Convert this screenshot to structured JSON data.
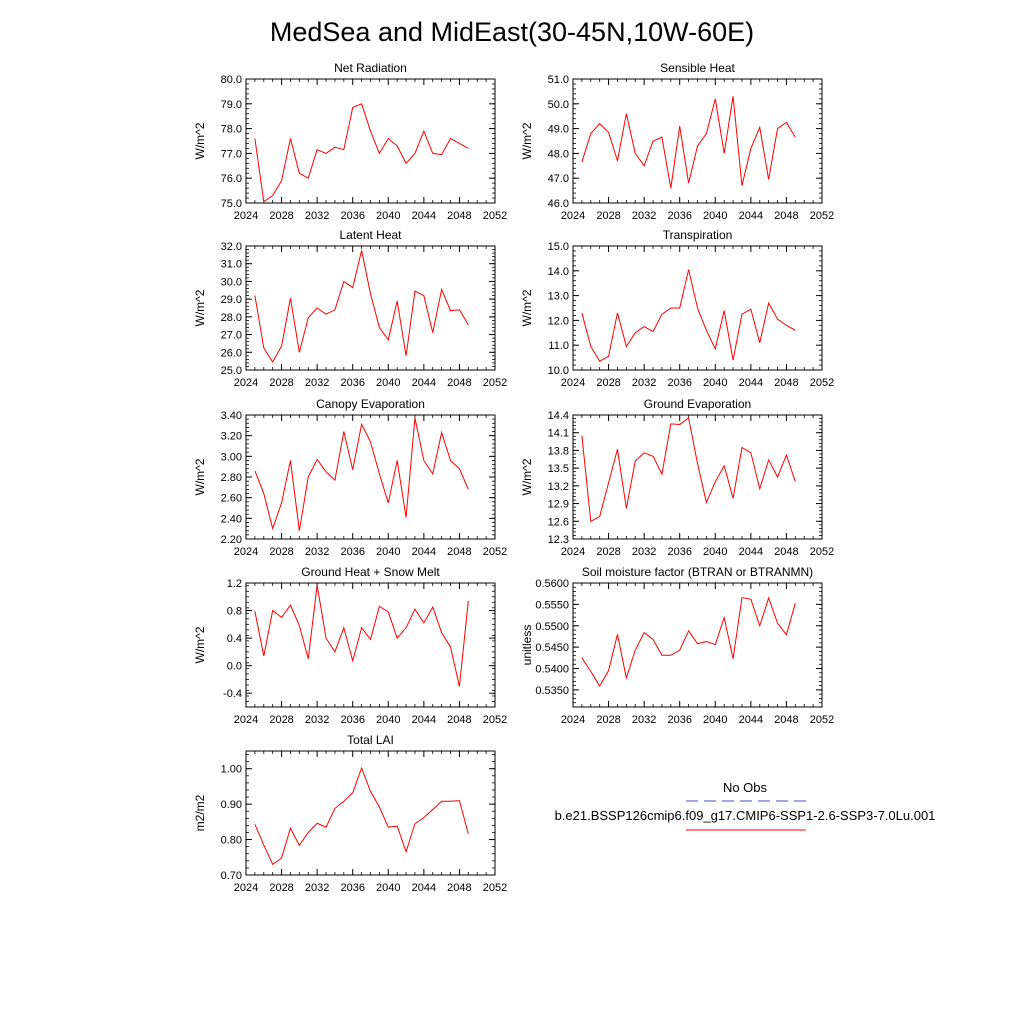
{
  "page_title": "MedSea and MidEast(30-45N,10W-60E)",
  "legend": {
    "obs_label": "No Obs",
    "run_label": "b.e21.BSSP126cmip6.f09_g17.CMIP6-SSP1-2.6-SSP3-7.0Lu.001",
    "obs_color": "#4b4bd0",
    "run_color": "#ff0000"
  },
  "chart_data": [
    {
      "type": "line",
      "title": "Net Radiation",
      "ylabel": "W/m^2",
      "xlim": [
        2024,
        2052
      ],
      "ylim": [
        75.0,
        80.0
      ],
      "xticks": [
        "2024",
        "2028",
        "2032",
        "2036",
        "2040",
        "2044",
        "2048",
        "2052"
      ],
      "yticks": [
        "75.0",
        "76.0",
        "77.0",
        "78.0",
        "79.0",
        "80.0"
      ],
      "x": [
        2025,
        2026,
        2027,
        2028,
        2029,
        2030,
        2031,
        2032,
        2033,
        2034,
        2035,
        2036,
        2037,
        2038,
        2039,
        2040,
        2041,
        2042,
        2043,
        2044,
        2045,
        2046,
        2047,
        2048,
        2049
      ],
      "series": [
        {
          "color": "#ff0000",
          "values": [
            77.6,
            75.05,
            75.3,
            75.9,
            77.6,
            76.2,
            76.0,
            77.15,
            77.0,
            77.25,
            77.15,
            78.85,
            79.0,
            77.9,
            77.0,
            77.6,
            77.3,
            76.6,
            77.0,
            77.9,
            77.0,
            76.95,
            77.6,
            77.4,
            77.2
          ]
        }
      ]
    },
    {
      "type": "line",
      "title": "Sensible Heat",
      "ylabel": "W/m^2",
      "xlim": [
        2024,
        2052
      ],
      "ylim": [
        46.0,
        51.0
      ],
      "xticks": [
        "2024",
        "2028",
        "2032",
        "2036",
        "2040",
        "2044",
        "2048",
        "2052"
      ],
      "yticks": [
        "46.0",
        "47.0",
        "48.0",
        "49.0",
        "50.0",
        "51.0"
      ],
      "x": [
        2025,
        2026,
        2027,
        2028,
        2029,
        2030,
        2031,
        2032,
        2033,
        2034,
        2035,
        2036,
        2037,
        2038,
        2039,
        2040,
        2041,
        2042,
        2043,
        2044,
        2045,
        2046,
        2047,
        2048,
        2049
      ],
      "series": [
        {
          "color": "#ff0000",
          "values": [
            47.65,
            48.8,
            49.2,
            48.85,
            47.7,
            49.6,
            48.0,
            47.5,
            48.5,
            48.65,
            46.6,
            49.1,
            46.8,
            48.3,
            48.8,
            50.2,
            48.0,
            50.3,
            46.7,
            48.2,
            49.05,
            46.95,
            49.0,
            49.25,
            48.65
          ]
        }
      ]
    },
    {
      "type": "line",
      "title": "Latent Heat",
      "ylabel": "W/m^2",
      "xlim": [
        2024,
        2052
      ],
      "ylim": [
        25.0,
        32.0
      ],
      "xticks": [
        "2024",
        "2028",
        "2032",
        "2036",
        "2040",
        "2044",
        "2048",
        "2052"
      ],
      "yticks": [
        "25.0",
        "26.0",
        "27.0",
        "28.0",
        "29.0",
        "30.0",
        "31.0",
        "32.0"
      ],
      "x": [
        2025,
        2026,
        2027,
        2028,
        2029,
        2030,
        2031,
        2032,
        2033,
        2034,
        2035,
        2036,
        2037,
        2038,
        2039,
        2040,
        2041,
        2042,
        2043,
        2044,
        2045,
        2046,
        2047,
        2048,
        2049
      ],
      "series": [
        {
          "color": "#ff0000",
          "values": [
            29.2,
            26.25,
            25.45,
            26.35,
            29.05,
            26.0,
            27.95,
            28.5,
            28.15,
            28.4,
            30.0,
            29.65,
            31.75,
            29.3,
            27.4,
            26.7,
            28.9,
            25.8,
            29.45,
            29.2,
            27.1,
            29.55,
            28.35,
            28.4,
            27.55
          ]
        }
      ]
    },
    {
      "type": "line",
      "title": "Transpiration",
      "ylabel": "W/m^2",
      "xlim": [
        2024,
        2052
      ],
      "ylim": [
        10.0,
        15.0
      ],
      "xticks": [
        "2024",
        "2028",
        "2032",
        "2036",
        "2040",
        "2044",
        "2048",
        "2052"
      ],
      "yticks": [
        "10.0",
        "11.0",
        "12.0",
        "13.0",
        "14.0",
        "15.0"
      ],
      "x": [
        2025,
        2026,
        2027,
        2028,
        2029,
        2030,
        2031,
        2032,
        2033,
        2034,
        2035,
        2036,
        2037,
        2038,
        2039,
        2040,
        2041,
        2042,
        2043,
        2044,
        2045,
        2046,
        2047,
        2048,
        2049
      ],
      "series": [
        {
          "color": "#ff0000",
          "values": [
            12.3,
            10.95,
            10.35,
            10.55,
            12.3,
            10.95,
            11.5,
            11.75,
            11.55,
            12.25,
            12.5,
            12.5,
            14.05,
            12.5,
            11.6,
            10.85,
            12.4,
            10.4,
            12.25,
            12.45,
            11.1,
            12.7,
            12.05,
            11.8,
            11.6
          ]
        }
      ]
    },
    {
      "type": "line",
      "title": "Canopy Evaporation",
      "ylabel": "W/m^2",
      "xlim": [
        2024,
        2052
      ],
      "ylim": [
        2.2,
        3.4
      ],
      "xticks": [
        "2024",
        "2028",
        "2032",
        "2036",
        "2040",
        "2044",
        "2048",
        "2052"
      ],
      "yticks": [
        "2.20",
        "2.40",
        "2.60",
        "2.80",
        "3.00",
        "3.20",
        "3.40"
      ],
      "x": [
        2025,
        2026,
        2027,
        2028,
        2029,
        2030,
        2031,
        2032,
        2033,
        2034,
        2035,
        2036,
        2037,
        2038,
        2039,
        2040,
        2041,
        2042,
        2043,
        2044,
        2045,
        2046,
        2047,
        2048,
        2049
      ],
      "series": [
        {
          "color": "#ff0000",
          "values": [
            2.86,
            2.64,
            2.3,
            2.55,
            2.96,
            2.28,
            2.8,
            2.97,
            2.85,
            2.77,
            3.24,
            2.87,
            3.31,
            3.14,
            2.83,
            2.55,
            2.96,
            2.41,
            3.37,
            2.96,
            2.83,
            3.23,
            2.96,
            2.88,
            2.68
          ]
        }
      ]
    },
    {
      "type": "line",
      "title": "Ground Evaporation",
      "ylabel": "W/m^2",
      "xlim": [
        2024,
        2052
      ],
      "ylim": [
        12.3,
        14.4
      ],
      "xticks": [
        "2024",
        "2028",
        "2032",
        "2036",
        "2040",
        "2044",
        "2048",
        "2052"
      ],
      "yticks": [
        "12.3",
        "12.6",
        "12.9",
        "13.2",
        "13.5",
        "13.8",
        "14.1",
        "14.4"
      ],
      "x": [
        2025,
        2026,
        2027,
        2028,
        2029,
        2030,
        2031,
        2032,
        2033,
        2034,
        2035,
        2036,
        2037,
        2038,
        2039,
        2040,
        2041,
        2042,
        2043,
        2044,
        2045,
        2046,
        2047,
        2048,
        2049
      ],
      "series": [
        {
          "color": "#ff0000",
          "values": [
            14.05,
            12.6,
            12.68,
            13.25,
            13.82,
            12.82,
            13.62,
            13.76,
            13.7,
            13.4,
            14.25,
            14.24,
            14.35,
            13.58,
            12.92,
            13.27,
            13.54,
            12.99,
            13.85,
            13.76,
            13.15,
            13.64,
            13.35,
            13.72,
            13.27
          ]
        }
      ]
    },
    {
      "type": "line",
      "title": "Ground Heat + Snow Melt",
      "ylabel": "W/m^2",
      "xlim": [
        2024,
        2052
      ],
      "ylim": [
        -0.6,
        1.2
      ],
      "xticks": [
        "2024",
        "2028",
        "2032",
        "2036",
        "2040",
        "2044",
        "2048",
        "2052"
      ],
      "yticks": [
        "-0.4",
        "0.0",
        "0.4",
        "0.8",
        "1.2"
      ],
      "ytick_values": [
        -0.4,
        0.0,
        0.4,
        0.8,
        1.2
      ],
      "x": [
        2025,
        2026,
        2027,
        2028,
        2029,
        2030,
        2031,
        2032,
        2033,
        2034,
        2035,
        2036,
        2037,
        2038,
        2039,
        2040,
        2041,
        2042,
        2043,
        2044,
        2045,
        2046,
        2047,
        2048,
        2049
      ],
      "series": [
        {
          "color": "#ff0000",
          "values": [
            0.79,
            0.14,
            0.8,
            0.7,
            0.88,
            0.58,
            0.1,
            1.17,
            0.4,
            0.2,
            0.55,
            0.07,
            0.55,
            0.38,
            0.86,
            0.78,
            0.4,
            0.55,
            0.82,
            0.62,
            0.85,
            0.48,
            0.27,
            -0.3,
            0.94
          ]
        }
      ]
    },
    {
      "type": "line",
      "title": "Soil moisture factor (BTRAN or BTRANMN)",
      "ylabel": "unitless",
      "xlim": [
        2024,
        2052
      ],
      "ylim": [
        0.531,
        0.56
      ],
      "xticks": [
        "2024",
        "2028",
        "2032",
        "2036",
        "2040",
        "2044",
        "2048",
        "2052"
      ],
      "yticks": [
        "0.5350",
        "0.5400",
        "0.5450",
        "0.5500",
        "0.5550",
        "0.5600"
      ],
      "ytick_values": [
        0.535,
        0.54,
        0.545,
        0.55,
        0.555,
        0.56
      ],
      "x": [
        2025,
        2026,
        2027,
        2028,
        2029,
        2030,
        2031,
        2032,
        2033,
        2034,
        2035,
        2036,
        2037,
        2038,
        2039,
        2040,
        2041,
        2042,
        2043,
        2044,
        2045,
        2046,
        2047,
        2048,
        2049
      ],
      "series": [
        {
          "color": "#ff0000",
          "values": [
            0.5425,
            0.5393,
            0.5359,
            0.5395,
            0.548,
            0.5378,
            0.5443,
            0.5484,
            0.5468,
            0.5431,
            0.5431,
            0.5443,
            0.5488,
            0.5458,
            0.5463,
            0.5456,
            0.5519,
            0.5423,
            0.5566,
            0.5562,
            0.55,
            0.5565,
            0.5506,
            0.5479,
            0.5553
          ]
        }
      ]
    },
    {
      "type": "line",
      "title": "Total LAI",
      "ylabel": "m2/m2",
      "xlim": [
        2024,
        2052
      ],
      "ylim": [
        0.7,
        1.05
      ],
      "xticks": [
        "2024",
        "2028",
        "2032",
        "2036",
        "2040",
        "2044",
        "2048",
        "2052"
      ],
      "yticks": [
        "0.70",
        "0.80",
        "0.90",
        "1.00"
      ],
      "ytick_values": [
        0.7,
        0.8,
        0.9,
        1.0
      ],
      "x": [
        2025,
        2026,
        2027,
        2028,
        2029,
        2030,
        2031,
        2032,
        2033,
        2034,
        2035,
        2036,
        2037,
        2038,
        2039,
        2040,
        2041,
        2042,
        2043,
        2044,
        2045,
        2046,
        2047,
        2048,
        2049
      ],
      "series": [
        {
          "color": "#ff0000",
          "values": [
            0.843,
            0.785,
            0.73,
            0.748,
            0.832,
            0.784,
            0.82,
            0.846,
            0.835,
            0.888,
            0.908,
            0.932,
            1.002,
            0.936,
            0.892,
            0.835,
            0.838,
            0.766,
            0.845,
            0.862,
            0.885,
            0.908,
            0.908,
            0.91,
            0.816
          ]
        }
      ]
    }
  ]
}
